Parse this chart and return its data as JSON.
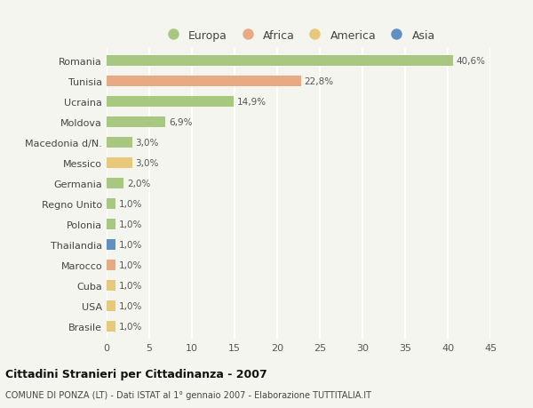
{
  "categories": [
    "Romania",
    "Tunisia",
    "Ucraina",
    "Moldova",
    "Macedonia d/N.",
    "Messico",
    "Germania",
    "Regno Unito",
    "Polonia",
    "Thailandia",
    "Marocco",
    "Cuba",
    "USA",
    "Brasile"
  ],
  "values": [
    40.6,
    22.8,
    14.9,
    6.9,
    3.0,
    3.0,
    2.0,
    1.0,
    1.0,
    1.0,
    1.0,
    1.0,
    1.0,
    1.0
  ],
  "labels": [
    "40,6%",
    "22,8%",
    "14,9%",
    "6,9%",
    "3,0%",
    "3,0%",
    "2,0%",
    "1,0%",
    "1,0%",
    "1,0%",
    "1,0%",
    "1,0%",
    "1,0%",
    "1,0%"
  ],
  "continents": [
    "Europa",
    "Africa",
    "Europa",
    "Europa",
    "Europa",
    "America",
    "Europa",
    "Europa",
    "Europa",
    "Asia",
    "Africa",
    "America",
    "America",
    "America"
  ],
  "continent_colors": {
    "Europa": "#a8c882",
    "Africa": "#e8aa84",
    "America": "#e8c87a",
    "Asia": "#6090c0"
  },
  "legend_order": [
    "Europa",
    "Africa",
    "America",
    "Asia"
  ],
  "title": "Cittadini Stranieri per Cittadinanza - 2007",
  "subtitle": "COMUNE DI PONZA (LT) - Dati ISTAT al 1° gennaio 2007 - Elaborazione TUTTITALIA.IT",
  "xlim": [
    0,
    45
  ],
  "background_color": "#f5f5f0",
  "bar_height": 0.55,
  "grid_color": "#ffffff",
  "xticks": [
    0,
    5,
    10,
    15,
    20,
    25,
    30,
    35,
    40,
    45
  ]
}
